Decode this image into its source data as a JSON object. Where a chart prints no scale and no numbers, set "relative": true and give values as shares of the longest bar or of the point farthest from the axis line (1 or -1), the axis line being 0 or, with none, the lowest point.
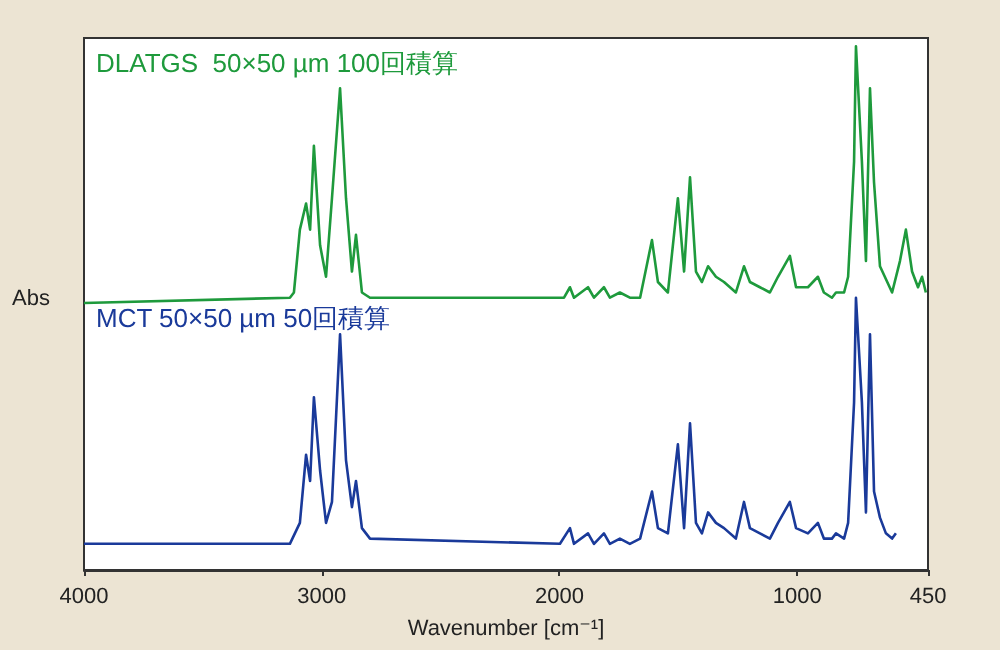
{
  "chart_data": {
    "type": "line",
    "relative": true,
    "xlabel": "Wavenumber [cm⁻¹]",
    "ylabel": "Abs",
    "xlim": [
      4000,
      450
    ],
    "xticks": [
      4000,
      3000,
      2000,
      1000,
      450
    ],
    "grid": false,
    "legend": false,
    "marker": "none",
    "line_style": "solid",
    "series": [
      {
        "name": "DLATGS  50×50 µm 100回積算",
        "color": "#1e9a3c",
        "x": [
          4000,
          3134,
          3117,
          3092,
          3066,
          3049,
          3033,
          3007,
          2982,
          2957,
          2923,
          2898,
          2873,
          2856,
          2831,
          2797,
          1998,
          1981,
          1956,
          1939,
          1880,
          1855,
          1813,
          1788,
          1746,
          1704,
          1661,
          1611,
          1586,
          1544,
          1502,
          1476,
          1451,
          1426,
          1401,
          1375,
          1342,
          1308,
          1258,
          1224,
          1199,
          1157,
          1115,
          1081,
          1031,
          1005,
          955,
          913,
          888,
          854,
          837,
          803,
          786,
          761,
          753,
          728,
          711,
          694,
          677,
          652,
          601,
          568,
          543,
          517,
          492,
          475,
          459
        ],
        "values": [
          0.51,
          0.52,
          0.53,
          0.65,
          0.7,
          0.65,
          0.81,
          0.62,
          0.56,
          0.71,
          0.92,
          0.71,
          0.57,
          0.64,
          0.53,
          0.52,
          0.52,
          0.52,
          0.54,
          0.52,
          0.54,
          0.52,
          0.54,
          0.52,
          0.53,
          0.52,
          0.52,
          0.63,
          0.55,
          0.53,
          0.71,
          0.57,
          0.75,
          0.57,
          0.55,
          0.58,
          0.56,
          0.55,
          0.53,
          0.58,
          0.55,
          0.54,
          0.53,
          0.56,
          0.6,
          0.54,
          0.54,
          0.56,
          0.53,
          0.52,
          0.53,
          0.53,
          0.56,
          0.78,
          1,
          0.78,
          0.59,
          0.92,
          0.74,
          0.58,
          0.53,
          0.59,
          0.65,
          0.57,
          0.54,
          0.56,
          0.53
        ]
      },
      {
        "name": "MCT 50×50 µm 50回積算",
        "color": "#1a3a9a",
        "x": [
          4000,
          3134,
          3092,
          3066,
          3049,
          3033,
          3007,
          2982,
          2957,
          2923,
          2898,
          2873,
          2856,
          2831,
          2797,
          1998,
          1956,
          1939,
          1880,
          1855,
          1813,
          1788,
          1746,
          1704,
          1661,
          1611,
          1586,
          1544,
          1502,
          1476,
          1451,
          1426,
          1401,
          1375,
          1342,
          1308,
          1258,
          1224,
          1199,
          1157,
          1115,
          1081,
          1031,
          1005,
          955,
          913,
          888,
          854,
          837,
          803,
          786,
          761,
          753,
          728,
          711,
          694,
          677,
          652,
          627,
          601,
          585
        ],
        "values": [
          0.05,
          0.05,
          0.09,
          0.22,
          0.17,
          0.33,
          0.19,
          0.09,
          0.13,
          0.45,
          0.21,
          0.12,
          0.17,
          0.08,
          0.06,
          0.05,
          0.08,
          0.05,
          0.07,
          0.05,
          0.07,
          0.05,
          0.06,
          0.05,
          0.06,
          0.15,
          0.08,
          0.07,
          0.24,
          0.08,
          0.28,
          0.09,
          0.07,
          0.11,
          0.09,
          0.08,
          0.06,
          0.13,
          0.08,
          0.07,
          0.06,
          0.09,
          0.13,
          0.08,
          0.07,
          0.09,
          0.06,
          0.06,
          0.07,
          0.06,
          0.09,
          0.32,
          0.52,
          0.32,
          0.11,
          0.45,
          0.15,
          0.1,
          0.07,
          0.06,
          0.07
        ]
      }
    ]
  }
}
